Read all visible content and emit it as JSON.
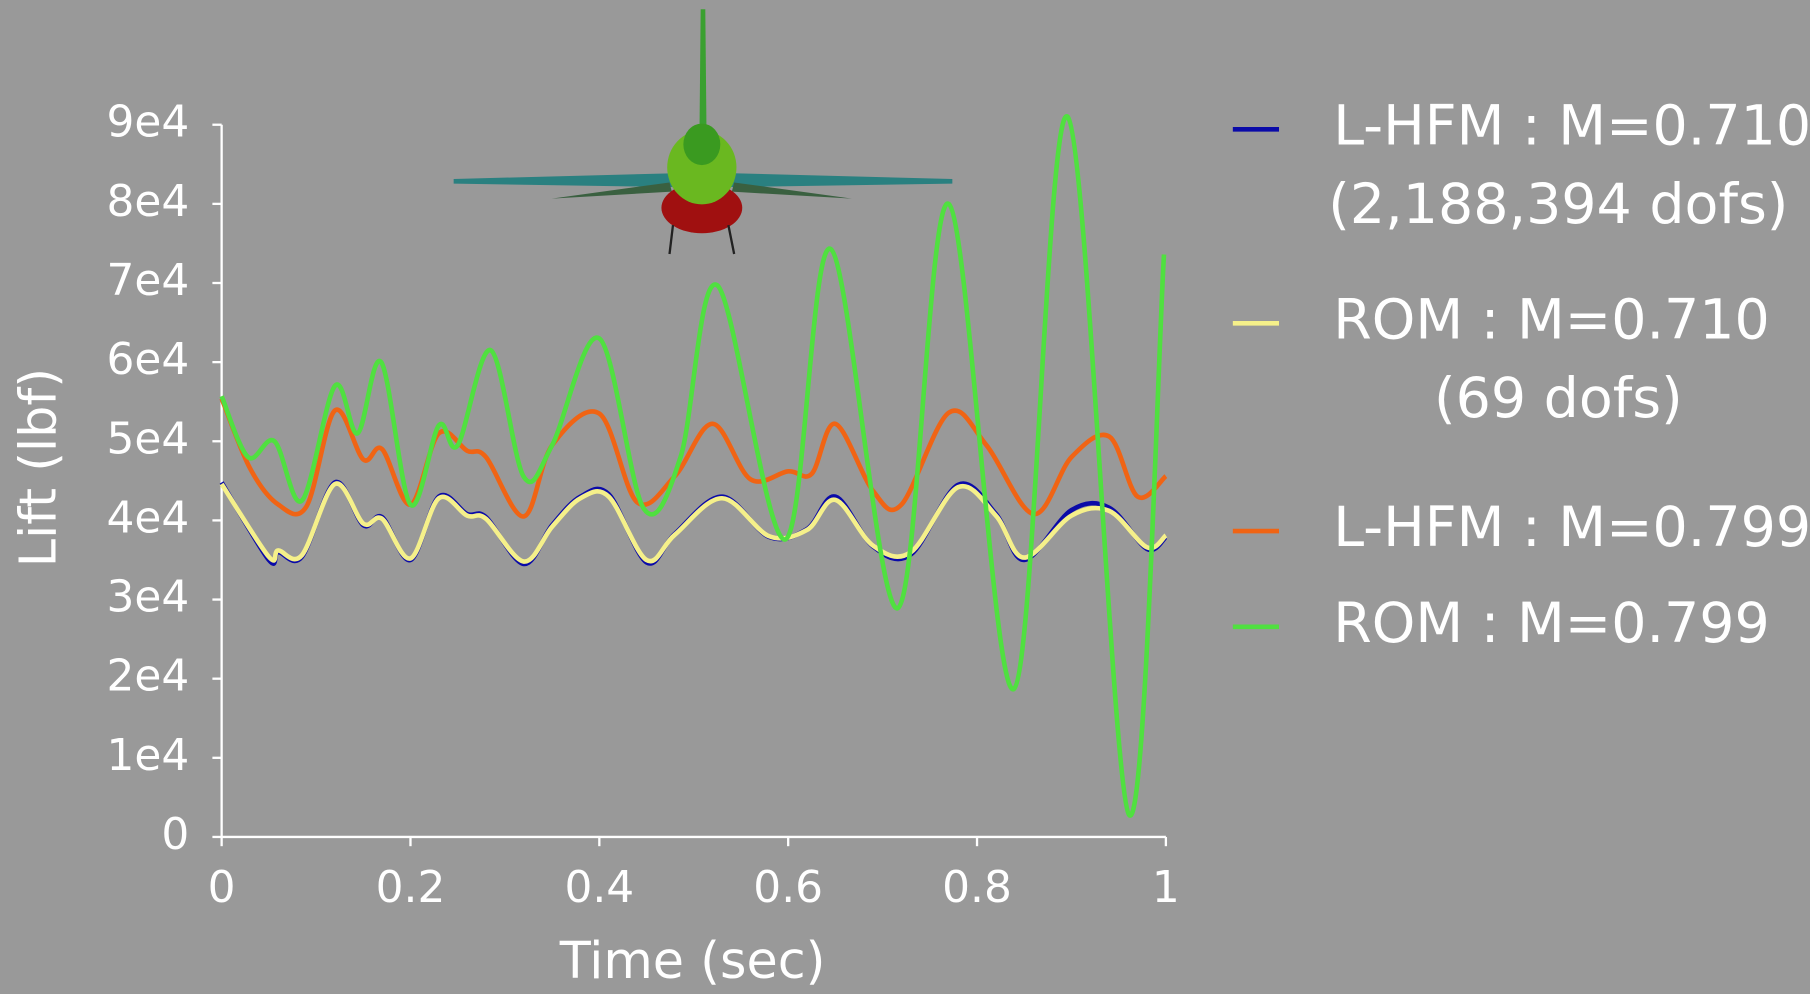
{
  "chart_data": {
    "type": "line",
    "xlabel": "Time (sec)",
    "ylabel": "Lift (lbf)",
    "xlim": [
      0,
      1
    ],
    "xticks": [
      0,
      0.2,
      0.4,
      0.6,
      0.8,
      1
    ],
    "ylim": [
      0,
      90000
    ],
    "yticks": [
      0,
      {
        "value": 10000,
        "label": "1e4"
      },
      {
        "value": 20000,
        "label": "2e4"
      },
      {
        "value": 30000,
        "label": "3e4"
      },
      {
        "value": 40000,
        "label": "4e4"
      },
      {
        "value": 50000,
        "label": "5e4"
      },
      {
        "value": 60000,
        "label": "6e4"
      },
      {
        "value": 70000,
        "label": "7e4"
      },
      {
        "value": 80000,
        "label": "8e4"
      },
      {
        "value": 90000,
        "label": "9e4"
      }
    ],
    "series": [
      {
        "name": "L-HFM : M=0.710",
        "note": "(2,188,394 dofs)",
        "color": "#0a0aa8",
        "x": [
          0,
          0.05,
          0.06,
          0.085,
          0.12,
          0.15,
          0.17,
          0.2,
          0.23,
          0.26,
          0.28,
          0.32,
          0.35,
          0.38,
          0.41,
          0.45,
          0.48,
          0.53,
          0.58,
          0.62,
          0.65,
          0.69,
          0.73,
          0.78,
          0.82,
          0.85,
          0.9,
          0.94,
          0.98,
          1
        ],
        "values": [
          44800,
          35000,
          36000,
          35400,
          44800,
          39400,
          40400,
          35000,
          43000,
          40800,
          40400,
          34500,
          39400,
          43000,
          43300,
          34700,
          38300,
          43000,
          37900,
          38900,
          43000,
          36700,
          35700,
          44500,
          40800,
          35000,
          41300,
          41600,
          36400,
          37900
        ]
      },
      {
        "name": "ROM : M=0.710",
        "note": "(69 dofs)",
        "color": "#f5f08a",
        "x": [
          0,
          0.05,
          0.06,
          0.085,
          0.12,
          0.15,
          0.17,
          0.2,
          0.23,
          0.26,
          0.28,
          0.32,
          0.35,
          0.38,
          0.41,
          0.45,
          0.48,
          0.53,
          0.58,
          0.62,
          0.65,
          0.69,
          0.73,
          0.78,
          0.82,
          0.85,
          0.9,
          0.94,
          0.98,
          1
        ],
        "values": [
          44600,
          35400,
          36200,
          35600,
          44600,
          39600,
          40200,
          35200,
          42800,
          40600,
          40200,
          34800,
          39200,
          42800,
          43000,
          35000,
          38200,
          42800,
          38000,
          38800,
          42600,
          36800,
          36000,
          44200,
          40600,
          35300,
          40600,
          41200,
          36600,
          38100
        ]
      },
      {
        "name": "L-HFM : M=0.799",
        "color": "#f06414",
        "x": [
          0,
          0.03,
          0.06,
          0.09,
          0.12,
          0.15,
          0.17,
          0.2,
          0.23,
          0.26,
          0.28,
          0.32,
          0.35,
          0.4,
          0.44,
          0.48,
          0.52,
          0.56,
          0.6,
          0.625,
          0.65,
          0.69,
          0.72,
          0.77,
          0.81,
          0.86,
          0.9,
          0.94,
          0.97,
          1
        ],
        "values": [
          55400,
          46600,
          42000,
          41800,
          53900,
          47700,
          49000,
          42000,
          51000,
          48800,
          48000,
          40500,
          49500,
          53500,
          42300,
          45600,
          52200,
          45200,
          46200,
          45900,
          52200,
          43700,
          42000,
          53600,
          49500,
          40800,
          48000,
          50600,
          43000,
          45600
        ]
      },
      {
        "name": "ROM : M=0.799",
        "color": "#50e040",
        "x": [
          0,
          0.028,
          0.056,
          0.085,
          0.12,
          0.144,
          0.169,
          0.2,
          0.23,
          0.25,
          0.285,
          0.32,
          0.35,
          0.4,
          0.447,
          0.486,
          0.525,
          0.597,
          0.645,
          0.716,
          0.77,
          0.839,
          0.896,
          0.961,
          0.998
        ],
        "values": [
          55700,
          48000,
          50000,
          42500,
          57000,
          51000,
          60000,
          42000,
          52000,
          49500,
          61500,
          45500,
          49500,
          63000,
          41500,
          48000,
          69700,
          37600,
          74300,
          28900,
          80000,
          18700,
          91000,
          2800,
          73600
        ]
      }
    ]
  }
}
